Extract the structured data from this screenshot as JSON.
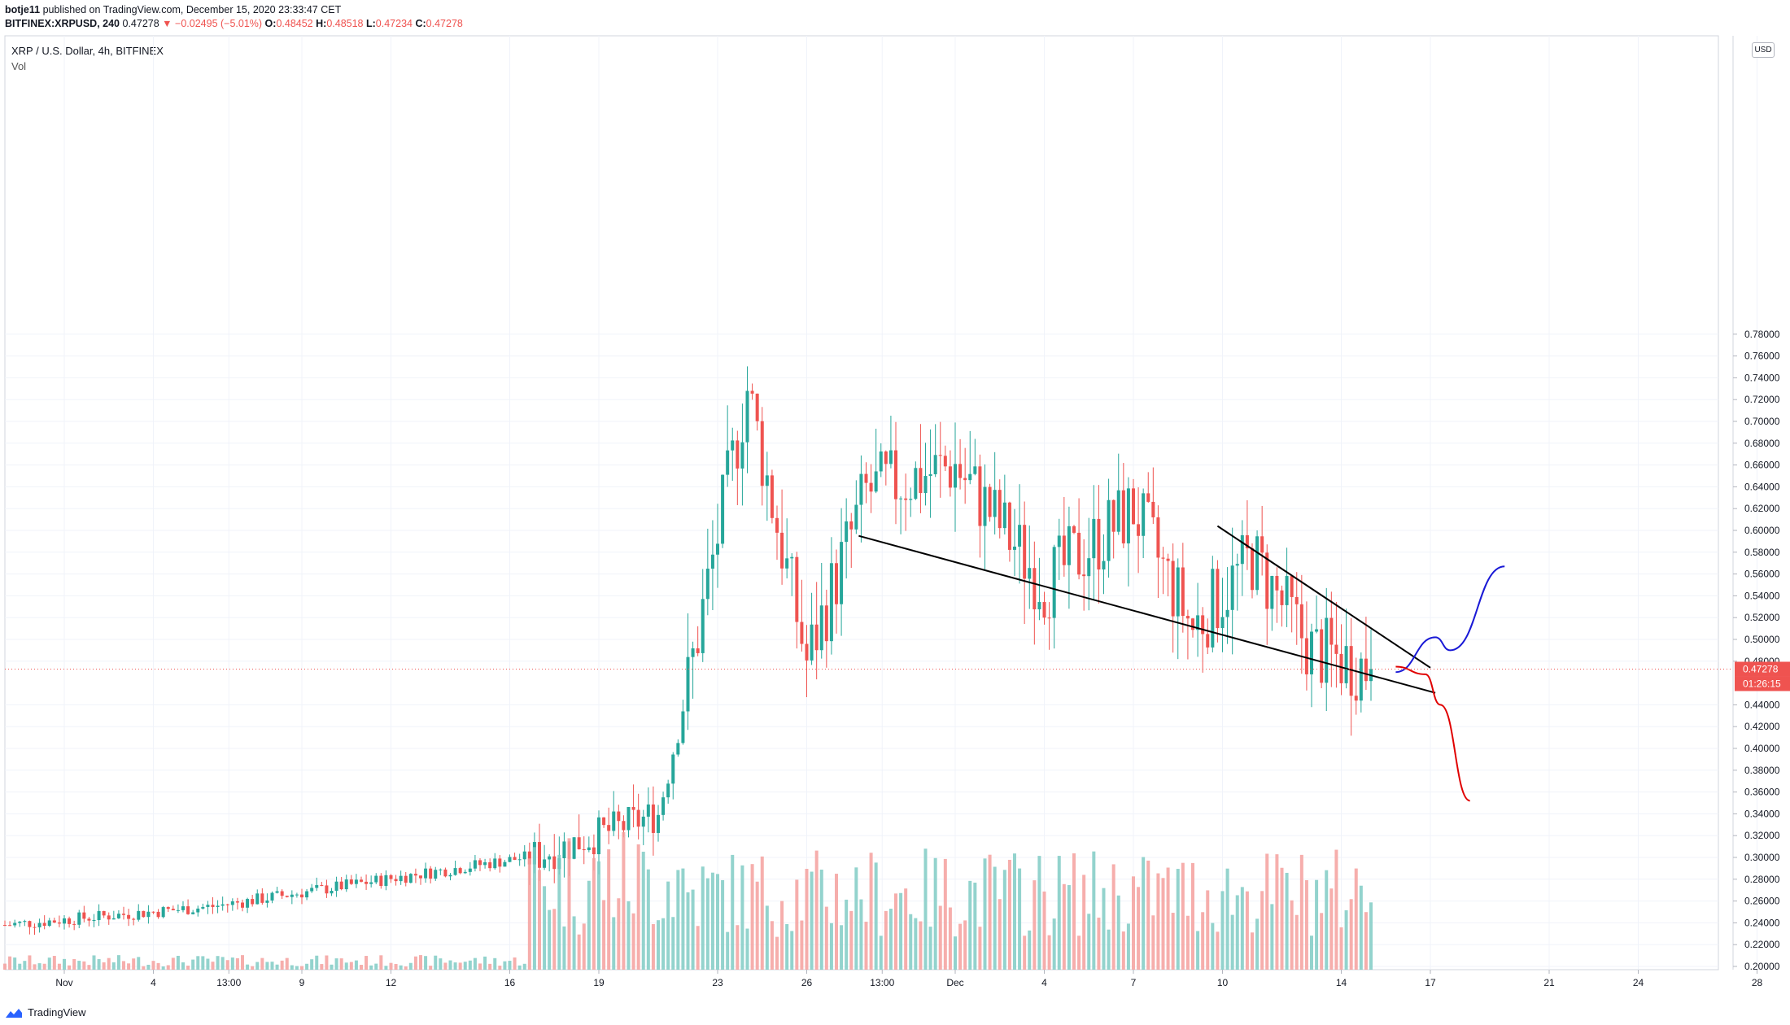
{
  "header": {
    "author": "botje11",
    "published": "published on TradingView.com, December 15, 2020 23:33:47 CET",
    "symbol_line_prefix": "BITFINEX:XRPUSD, 240",
    "last": "0.47278",
    "change_arrow": "▼",
    "change": "−0.02495 (−5.01%)",
    "o_label": "O:",
    "o": "0.48452",
    "h_label": "H:",
    "h": "0.48518",
    "l_label": "L:",
    "l": "0.47234",
    "c_label": "C:",
    "c": "0.47278"
  },
  "legend": {
    "title": "XRP / U.S. Dollar, 4h, BITFINEX",
    "vol": "Vol"
  },
  "price_axis": {
    "currency_button": "USD",
    "ticks": [
      "0.78000",
      "0.76000",
      "0.74000",
      "0.72000",
      "0.70000",
      "0.68000",
      "0.66000",
      "0.64000",
      "0.62000",
      "0.60000",
      "0.58000",
      "0.56000",
      "0.54000",
      "0.52000",
      "0.50000",
      "0.48000",
      "0.44000",
      "0.42000",
      "0.40000",
      "0.38000",
      "0.36000",
      "0.34000",
      "0.32000",
      "0.30000",
      "0.28000",
      "0.26000",
      "0.24000",
      "0.22000",
      "0.20000"
    ],
    "last_price_label": "0.47278",
    "countdown_label": "01:26:15"
  },
  "time_axis": {
    "ticks": [
      "Nov",
      "4",
      "13:00",
      "9",
      "12",
      "16",
      "19",
      "23",
      "26",
      "13:00",
      "Dec",
      "4",
      "7",
      "10",
      "14",
      "17",
      "21",
      "24",
      "28"
    ]
  },
  "colors": {
    "up": "#26a69a",
    "down": "#ef5350",
    "up_volume": "#80cbc4",
    "down_volume": "#f4a09d",
    "bullish_scenario": "#1a1ad6",
    "bearish_scenario": "#e00000",
    "trendline": "#000000"
  },
  "chart_data": {
    "type": "candlestick",
    "title": "XRP / U.S. Dollar, 4h, BITFINEX",
    "ylim": [
      0.195,
      0.81
    ],
    "xlim": [
      "2020-10-30",
      "2020-12-29"
    ],
    "last_price": 0.47278,
    "key_points": [
      {
        "date": "2020-10-30",
        "price": 0.238
      },
      {
        "date": "2020-11-06",
        "price": 0.255
      },
      {
        "date": "2020-11-17",
        "price": 0.302
      },
      {
        "date": "2020-11-21",
        "price": 0.34
      },
      {
        "date": "2020-11-22",
        "price": 0.46
      },
      {
        "date": "2020-11-24",
        "price": 0.73
      },
      {
        "date": "2020-11-26",
        "price": 0.48
      },
      {
        "date": "2020-11-28",
        "price": 0.635
      },
      {
        "date": "2020-12-01",
        "price": 0.66
      },
      {
        "date": "2020-12-04",
        "price": 0.55
      },
      {
        "date": "2020-12-07",
        "price": 0.62
      },
      {
        "date": "2020-12-09",
        "price": 0.51
      },
      {
        "date": "2020-12-11",
        "price": 0.575
      },
      {
        "date": "2020-12-13",
        "price": 0.49
      },
      {
        "date": "2020-12-15",
        "price": 0.473
      }
    ],
    "drawings": [
      {
        "name": "lower trendline",
        "color": "black",
        "from": {
          "date": "2020-11-27 18:00",
          "price": 0.595
        },
        "to": {
          "date": "2020-12-17 04:00",
          "price": 0.451
        }
      },
      {
        "name": "upper trendline",
        "color": "black",
        "from": {
          "date": "2020-12-09 20:00",
          "price": 0.604
        },
        "to": {
          "date": "2020-12-17 00:00",
          "price": 0.474
        }
      },
      {
        "name": "bullish path",
        "color": "blue",
        "points": [
          {
            "date": "2020-12-15 20:00",
            "price": 0.47
          },
          {
            "date": "2020-12-17 04:00",
            "price": 0.502
          },
          {
            "date": "2020-12-17 16:00",
            "price": 0.49
          },
          {
            "date": "2020-12-19 12:00",
            "price": 0.567
          }
        ]
      },
      {
        "name": "bearish path",
        "color": "red",
        "points": [
          {
            "date": "2020-12-15 20:00",
            "price": 0.475
          },
          {
            "date": "2020-12-16 20:00",
            "price": 0.468
          },
          {
            "date": "2020-12-17 08:00",
            "price": 0.44
          },
          {
            "date": "2020-12-18 08:00",
            "price": 0.352
          }
        ]
      }
    ]
  }
}
